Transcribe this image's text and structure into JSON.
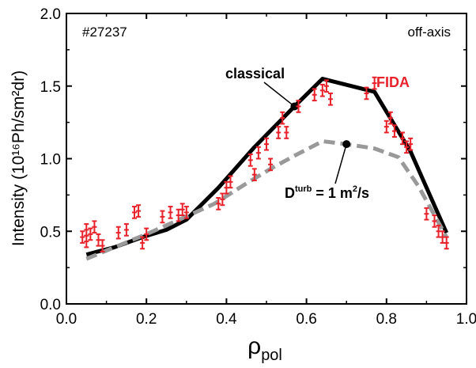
{
  "chart_data": {
    "type": "line",
    "shot_label": "#27237",
    "view_label": "off-axis",
    "xlabel": "ρ",
    "xlabel_sub": "pol",
    "ylabel": "Intensity (10¹⁶Ph/sm²dr)",
    "xlim": [
      0.0,
      1.0
    ],
    "ylim": [
      0.0,
      2.0
    ],
    "x_ticks": [
      "0.0",
      "0.2",
      "0.4",
      "0.6",
      "0.8",
      "1.0"
    ],
    "y_ticks": [
      "0.0",
      "0.5",
      "1.0",
      "1.5",
      "2.0"
    ],
    "x_tick_values": [
      0.0,
      0.2,
      0.4,
      0.6,
      0.8,
      1.0
    ],
    "y_tick_values": [
      0.0,
      0.5,
      1.0,
      1.5,
      2.0
    ],
    "series": [
      {
        "name": "classical",
        "style": "solid",
        "color": "#000000",
        "x": [
          0.05,
          0.12,
          0.19,
          0.25,
          0.3,
          0.38,
          0.47,
          0.57,
          0.64,
          0.77,
          0.86,
          0.95
        ],
        "y": [
          0.34,
          0.39,
          0.46,
          0.51,
          0.58,
          0.8,
          1.08,
          1.36,
          1.55,
          1.46,
          1.05,
          0.49
        ],
        "marker": {
          "x": 0.57,
          "y": 1.36
        }
      },
      {
        "name": "Dturb = 1 m2/s",
        "style": "dashed",
        "color": "#999999",
        "x": [
          0.05,
          0.12,
          0.2,
          0.29,
          0.37,
          0.45,
          0.51,
          0.57,
          0.64,
          0.7,
          0.77,
          0.83,
          0.88,
          0.95
        ],
        "y": [
          0.31,
          0.39,
          0.48,
          0.59,
          0.69,
          0.83,
          0.93,
          1.02,
          1.12,
          1.1,
          1.07,
          1.01,
          0.81,
          0.46
        ],
        "marker": {
          "x": 0.7,
          "y": 1.1
        }
      },
      {
        "name": "FIDA",
        "style": "errorbar",
        "color": "#e8222a",
        "x": [
          0.04,
          0.05,
          0.05,
          0.06,
          0.07,
          0.08,
          0.09,
          0.13,
          0.15,
          0.17,
          0.18,
          0.19,
          0.2,
          0.24,
          0.26,
          0.28,
          0.29,
          0.3,
          0.38,
          0.39,
          0.4,
          0.41,
          0.46,
          0.47,
          0.48,
          0.5,
          0.51,
          0.53,
          0.54,
          0.55,
          0.58,
          0.62,
          0.64,
          0.65,
          0.66,
          0.75,
          0.77,
          0.8,
          0.81,
          0.82,
          0.84,
          0.85,
          0.86,
          0.9,
          0.92,
          0.93,
          0.94,
          0.95
        ],
        "y": [
          0.46,
          0.51,
          0.43,
          0.48,
          0.53,
          0.44,
          0.4,
          0.49,
          0.51,
          0.63,
          0.64,
          0.42,
          0.48,
          0.6,
          0.63,
          0.61,
          0.65,
          0.63,
          0.69,
          0.72,
          0.8,
          0.84,
          0.99,
          0.89,
          1.04,
          1.1,
          0.96,
          1.18,
          1.28,
          1.18,
          1.36,
          1.44,
          1.47,
          1.5,
          1.41,
          1.45,
          1.52,
          1.22,
          1.28,
          1.19,
          1.14,
          1.08,
          1.1,
          0.62,
          0.57,
          0.5,
          0.46,
          0.42
        ],
        "yerr": 0.04
      }
    ],
    "annotations": {
      "classical": "classical",
      "fida": "FIDA",
      "dturb_main": "D",
      "dturb_sup": "turb",
      "dturb_rest": " = 1 m",
      "dturb_sup2": "2",
      "dturb_end": "/s"
    },
    "colors": {
      "classical": "#000000",
      "dturb": "#999999",
      "fida": "#e8222a"
    },
    "grid": false,
    "legend": "none"
  }
}
